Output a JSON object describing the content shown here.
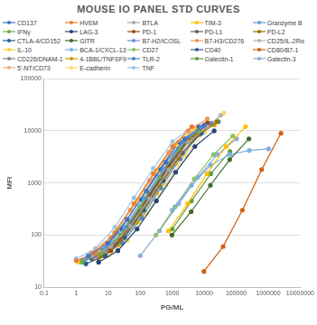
{
  "chart_data": {
    "type": "line",
    "title": "MOUSE IO PANEL STD CURVES",
    "x_label": "PG/ML",
    "y_label": "MFI",
    "log": true,
    "grid": "y",
    "legend": "top",
    "marker": "circle",
    "xlim": [
      0.1,
      10000000
    ],
    "xticks": [
      0.1,
      1,
      10,
      100,
      1000,
      10000,
      100000,
      1000000,
      10000000
    ],
    "ylim": [
      10,
      100000
    ],
    "yticks": [
      10,
      100,
      1000,
      10000,
      100000
    ],
    "series": [
      {
        "name": "CD137",
        "color": "#4472c4",
        "x": [
          2.4,
          9.8,
          39,
          156,
          625,
          2500,
          10000
        ],
        "values": [
          40,
          70,
          200,
          700,
          2500,
          7000,
          13000
        ]
      },
      {
        "name": "HVEM",
        "color": "#ed7d31",
        "x": [
          1,
          4,
          16,
          64,
          256,
          1024,
          4096
        ],
        "values": [
          32,
          45,
          110,
          400,
          1500,
          5000,
          12000
        ]
      },
      {
        "name": "BTLA",
        "color": "#a5a5a5",
        "x": [
          3,
          12,
          49,
          195,
          780,
          3125,
          12500
        ],
        "values": [
          40,
          60,
          150,
          500,
          1800,
          6000,
          12000
        ]
      },
      {
        "name": "TIM-3",
        "color": "#ffc000",
        "x": [
          760,
          3050,
          12200,
          48800,
          195000
        ],
        "values": [
          120,
          400,
          1500,
          5000,
          12000
        ]
      },
      {
        "name": "Granzyme B",
        "color": "#5b9bd5",
        "x": [
          2,
          8,
          32,
          128,
          512,
          2048,
          8192
        ],
        "values": [
          35,
          55,
          140,
          500,
          1800,
          6000,
          12000
        ]
      },
      {
        "name": "IFNγ",
        "color": "#70ad47",
        "x": [
          1.5,
          6,
          24,
          98,
          390,
          1560,
          6250
        ],
        "values": [
          30,
          45,
          100,
          350,
          1300,
          4500,
          10000
        ]
      },
      {
        "name": "LAG-3",
        "color": "#264478",
        "x": [
          5,
          20,
          80,
          320,
          1280,
          5120,
          20480
        ],
        "values": [
          30,
          50,
          130,
          450,
          1600,
          5000,
          10000
        ]
      },
      {
        "name": "PD-1",
        "color": "#9e480e",
        "x": [
          12,
          49,
          195,
          780,
          3125,
          12500
        ],
        "values": [
          50,
          150,
          550,
          2000,
          6500,
          14000
        ]
      },
      {
        "name": "PD-L1",
        "color": "#636363",
        "x": [
          3,
          12,
          49,
          195,
          780,
          3125,
          12500
        ],
        "values": [
          35,
          60,
          170,
          600,
          2200,
          7000,
          13000
        ]
      },
      {
        "name": "PD-L2",
        "color": "#997300",
        "x": [
          6,
          24,
          98,
          390,
          1560,
          6250,
          25000
        ],
        "values": [
          40,
          80,
          250,
          900,
          3000,
          8500,
          15000
        ]
      },
      {
        "name": "CTLA-4/CD152",
        "color": "#255e91",
        "x": [
          2,
          8,
          32,
          128,
          512,
          2048,
          8192
        ],
        "values": [
          28,
          40,
          90,
          300,
          1100,
          3800,
          9000
        ]
      },
      {
        "name": "GITR",
        "color": "#43682b",
        "x": [
          980,
          3900,
          15600,
          62500,
          250000
        ],
        "values": [
          100,
          280,
          900,
          2800,
          7000
        ]
      },
      {
        "name": "B7-H2/ICOSL",
        "color": "#698ed0",
        "x": [
          4,
          16,
          64,
          256,
          1024,
          4096,
          16384
        ],
        "values": [
          40,
          70,
          200,
          750,
          2700,
          8000,
          14000
        ]
      },
      {
        "name": "B7-H3/CD276",
        "color": "#f1975a",
        "x": [
          3,
          12,
          49,
          195,
          780,
          3125,
          12500
        ],
        "values": [
          45,
          90,
          300,
          1100,
          3800,
          10000,
          17000
        ]
      },
      {
        "name": "CD25/IL-2Rα",
        "color": "#b7b7b7",
        "x": [
          8,
          32,
          128,
          512,
          2048,
          8192,
          32768
        ],
        "values": [
          45,
          90,
          280,
          1000,
          3500,
          9500,
          20000
        ]
      },
      {
        "name": "IL-10",
        "color": "#ffcd33",
        "x": [
          1.2,
          5,
          20,
          80,
          320,
          1280,
          5120
        ],
        "values": [
          30,
          50,
          130,
          450,
          1700,
          5500,
          11000
        ]
      },
      {
        "name": "BCA-1/CXCL-13",
        "color": "#7cafdd",
        "x": [
          1000,
          4000,
          16000,
          64000,
          256000,
          1024000
        ],
        "values": [
          300,
          900,
          2200,
          3500,
          4200,
          4500
        ]
      },
      {
        "name": "CD27",
        "color": "#8cc168",
        "x": [
          310,
          1230,
          4900,
          19600,
          78000
        ],
        "values": [
          100,
          350,
          1200,
          3500,
          8000
        ]
      },
      {
        "name": "CD40",
        "color": "#335aa1",
        "x": [
          1.6,
          6.4,
          25,
          100,
          400,
          1600,
          6400
        ],
        "values": [
          33,
          50,
          130,
          480,
          1800,
          6000,
          12000
        ]
      },
      {
        "name": "CD80/B7-1",
        "color": "#d26012",
        "x": [
          9800,
          39000,
          156000,
          625000,
          2500000
        ],
        "values": [
          20,
          60,
          300,
          1800,
          9000
        ]
      },
      {
        "name": "CD226/DNAM-1",
        "color": "#848484",
        "x": [
          2.4,
          9.8,
          39,
          156,
          625,
          2500,
          10000
        ],
        "values": [
          38,
          55,
          140,
          500,
          1900,
          6500,
          12500
        ]
      },
      {
        "name": "4-1BBL/TNFSF9",
        "color": "#cc9a00",
        "x": [
          5,
          20,
          80,
          320,
          1280,
          5120,
          20480
        ],
        "values": [
          35,
          65,
          180,
          650,
          2400,
          7500,
          13000
        ]
      },
      {
        "name": "TLR-2",
        "color": "#4a87c5",
        "x": [
          7,
          27,
          110,
          440,
          1760,
          7000,
          28000
        ],
        "values": [
          40,
          70,
          210,
          800,
          2900,
          8500,
          15000
        ]
      },
      {
        "name": "Galectin-1",
        "color": "#5f9e3a",
        "x": [
          1000,
          4000,
          16000,
          64000
        ],
        "values": [
          130,
          450,
          1500,
          4000
        ]
      },
      {
        "name": "Galectin-3",
        "color": "#8faadc",
        "x": [
          100,
          400,
          1600,
          6400,
          25600,
          102400
        ],
        "values": [
          40,
          120,
          400,
          1300,
          3500,
          7000
        ]
      },
      {
        "name": "5'-NT/CD73",
        "color": "#f4b183",
        "x": [
          3.5,
          14,
          56,
          225,
          900,
          3600,
          14400
        ],
        "values": [
          35,
          60,
          170,
          620,
          2300,
          7000,
          14000
        ]
      },
      {
        "name": "E-cadherin",
        "color": "#ffd966",
        "x": [
          10,
          40,
          160,
          640,
          2560,
          10240,
          40960
        ],
        "values": [
          40,
          80,
          260,
          950,
          3400,
          9500,
          22000
        ]
      },
      {
        "name": "TNF",
        "color": "#9dc3e6",
        "x": [
          1,
          4,
          16,
          64,
          256,
          1024,
          4096
        ],
        "values": [
          35,
          55,
          140,
          520,
          1900,
          6200,
          12000
        ]
      }
    ]
  }
}
